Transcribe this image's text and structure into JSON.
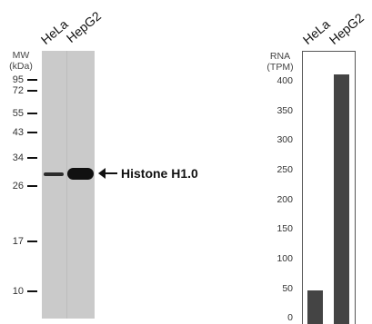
{
  "western_blot": {
    "mw_label": "MW",
    "mw_unit": "(kDa)",
    "lanes": [
      "HeLa",
      "HepG2"
    ],
    "markers": [
      "95",
      "72",
      "55",
      "43",
      "34",
      "26",
      "17",
      "10"
    ],
    "target_label": "Histone H1.0"
  },
  "rna": {
    "title": "RNA",
    "unit": "(TPM)",
    "lanes": [
      "HeLa",
      "HepG2"
    ]
  },
  "chart_data": {
    "type": "bar",
    "categories": [
      "HeLa",
      "HepG2"
    ],
    "values": [
      47,
      413
    ],
    "ylabel": "RNA (TPM)",
    "ylim": [
      0,
      430
    ],
    "yticks": [
      "0",
      "50",
      "100",
      "150",
      "200",
      "250",
      "300",
      "350",
      "400"
    ],
    "bar_color": "#444444",
    "grid": false
  }
}
